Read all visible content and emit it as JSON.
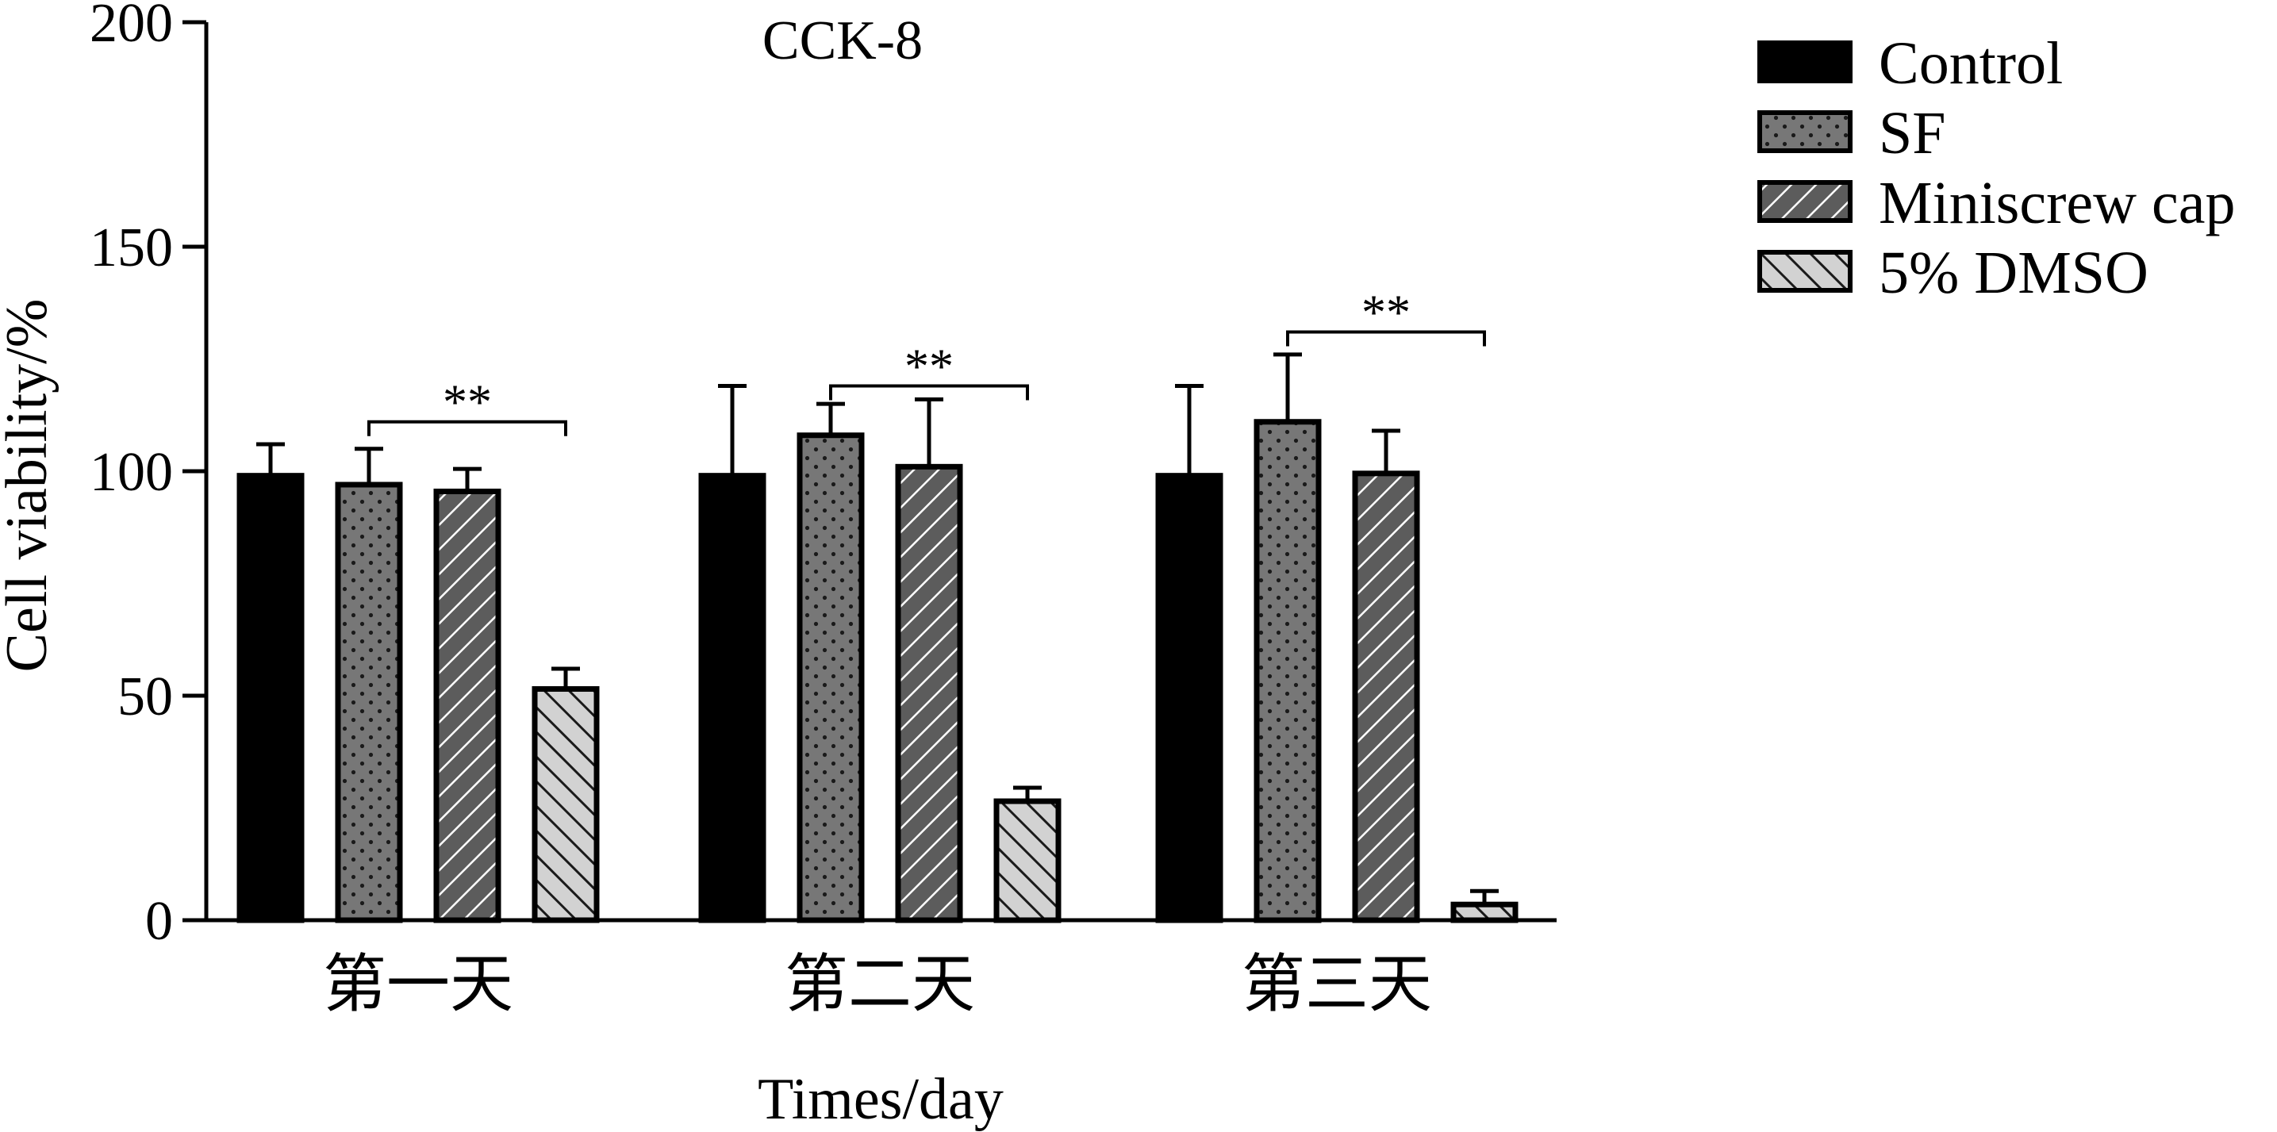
{
  "chart_data": {
    "type": "bar",
    "title": "CCK-8",
    "xlabel": "Times/day",
    "ylabel": "Cell viability/%",
    "ylim": [
      0,
      200
    ],
    "yticks": [
      0,
      50,
      100,
      150,
      200
    ],
    "grid": false,
    "legend_position": "top-right",
    "categories": [
      "第一天",
      "第二天",
      "第三天"
    ],
    "series": [
      {
        "name": "Control",
        "values": [
          99,
          99,
          99
        ],
        "errors": [
          7,
          20,
          20
        ],
        "pattern": "solid",
        "color": "#000000"
      },
      {
        "name": "SF",
        "values": [
          97,
          108,
          111
        ],
        "errors": [
          8,
          7,
          15
        ],
        "pattern": "dots",
        "color": "#777777"
      },
      {
        "name": "Miniscrew cap",
        "values": [
          95.5,
          101,
          99.5
        ],
        "errors": [
          5,
          15,
          9.5
        ],
        "pattern": "hatch-forward",
        "color": "#5c5c5c"
      },
      {
        "name": "5% DMSO",
        "values": [
          51.5,
          26.5,
          3.5
        ],
        "errors": [
          4.5,
          3,
          3
        ],
        "pattern": "hatch-back",
        "color": "#d2d2d2"
      }
    ],
    "annotations": [
      {
        "text": "**",
        "category_index": 0,
        "from_series": 1,
        "to_series": 3,
        "y": 111
      },
      {
        "text": "**",
        "category_index": 1,
        "from_series": 1,
        "to_series": 3,
        "y": 119
      },
      {
        "text": "**",
        "category_index": 2,
        "from_series": 1,
        "to_series": 3,
        "y": 131
      }
    ]
  }
}
